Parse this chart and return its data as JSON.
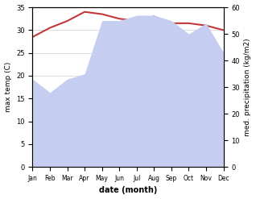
{
  "months": [
    "Jan",
    "Feb",
    "Mar",
    "Apr",
    "May",
    "Jun",
    "Jul",
    "Aug",
    "Sep",
    "Oct",
    "Nov",
    "Dec"
  ],
  "temp": [
    28.5,
    30.5,
    32.0,
    34.0,
    33.5,
    32.5,
    32.0,
    33.0,
    31.5,
    31.5,
    31.0,
    30.0
  ],
  "precip": [
    33,
    28,
    33,
    35,
    55,
    55,
    57,
    57,
    55,
    50,
    54,
    43
  ],
  "temp_color": "#c0393b",
  "precip_fill_color": "#c5cef0",
  "temp_linewidth": 1.5,
  "ylim_left": [
    0,
    35
  ],
  "ylim_right": [
    0,
    60
  ],
  "xlabel": "date (month)",
  "ylabel_left": "max temp (C)",
  "ylabel_right": "med. precipitation (kg/m2)",
  "bg_color": "#ffffff",
  "grid_color": "#d0d0d0"
}
